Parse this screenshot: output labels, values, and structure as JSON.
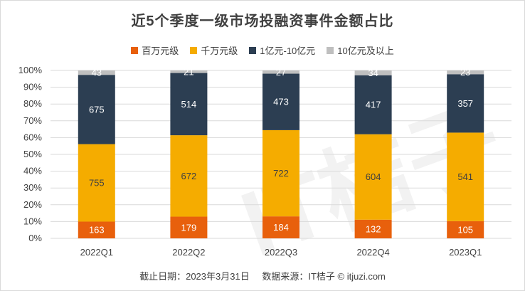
{
  "title": "近5个季度一级市场投融资事件金额占比",
  "footer": {
    "date_label": "截止日期：2023年3月31日",
    "source_label": "数据来源：IT桔子 © itjuzi.com"
  },
  "colors": {
    "bai_wan": "#e8600c",
    "qian_wan": "#f5ac00",
    "yi_yi": "#2c3e52",
    "shi_yi": "#bfbfbf",
    "grid": "#d9d9d9",
    "axis_text": "#404040"
  },
  "chart_data": {
    "type": "bar",
    "stacked": true,
    "normalized": true,
    "title": "近5个季度一级市场投融资事件金额占比",
    "categories": [
      "2022Q1",
      "2022Q2",
      "2022Q3",
      "2022Q4",
      "2023Q1"
    ],
    "series": [
      {
        "name": "百万元级",
        "values": [
          163,
          179,
          184,
          132,
          105
        ],
        "color": "#e8600c",
        "label_color": "#ffffff"
      },
      {
        "name": "千万元级",
        "values": [
          755,
          672,
          722,
          604,
          541
        ],
        "color": "#f5ac00",
        "label_color": "#404040"
      },
      {
        "name": "1亿元-10亿元",
        "values": [
          675,
          514,
          473,
          417,
          357
        ],
        "color": "#2c3e52",
        "label_color": "#ffffff"
      },
      {
        "name": "10亿元及以上",
        "values": [
          43,
          21,
          27,
          34,
          23
        ],
        "color": "#bfbfbf",
        "label_color": "#ffffff"
      }
    ],
    "yticks": [
      "0%",
      "10%",
      "20%",
      "30%",
      "40%",
      "50%",
      "60%",
      "70%",
      "80%",
      "90%",
      "100%"
    ],
    "ylim": [
      0,
      100
    ],
    "legend_position": "top-center"
  }
}
